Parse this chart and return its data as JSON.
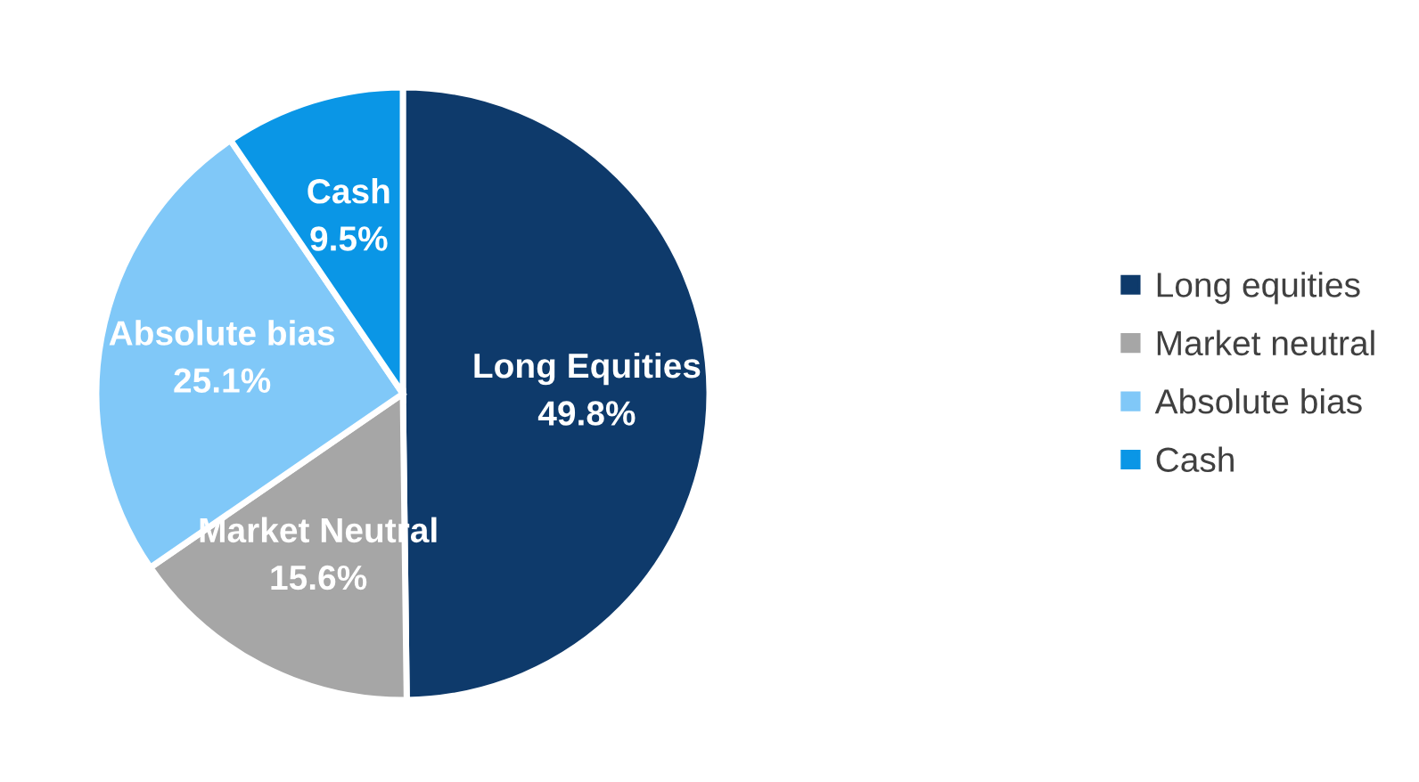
{
  "chart_data": {
    "type": "pie",
    "categories": [
      "Long equities",
      "Market neutral",
      "Absolute bias",
      "Cash"
    ],
    "values": [
      49.8,
      15.6,
      25.1,
      9.5
    ],
    "colors": [
      "#0e3a6b",
      "#a6a6a6",
      "#80c8f8",
      "#0a96e6"
    ],
    "value_labels": [
      "Long Equities\n49.8%",
      "Market Neutral\n15.6%",
      "Absolute bias\n25.1%",
      "Cash\n9.5%"
    ],
    "legend": "right"
  }
}
